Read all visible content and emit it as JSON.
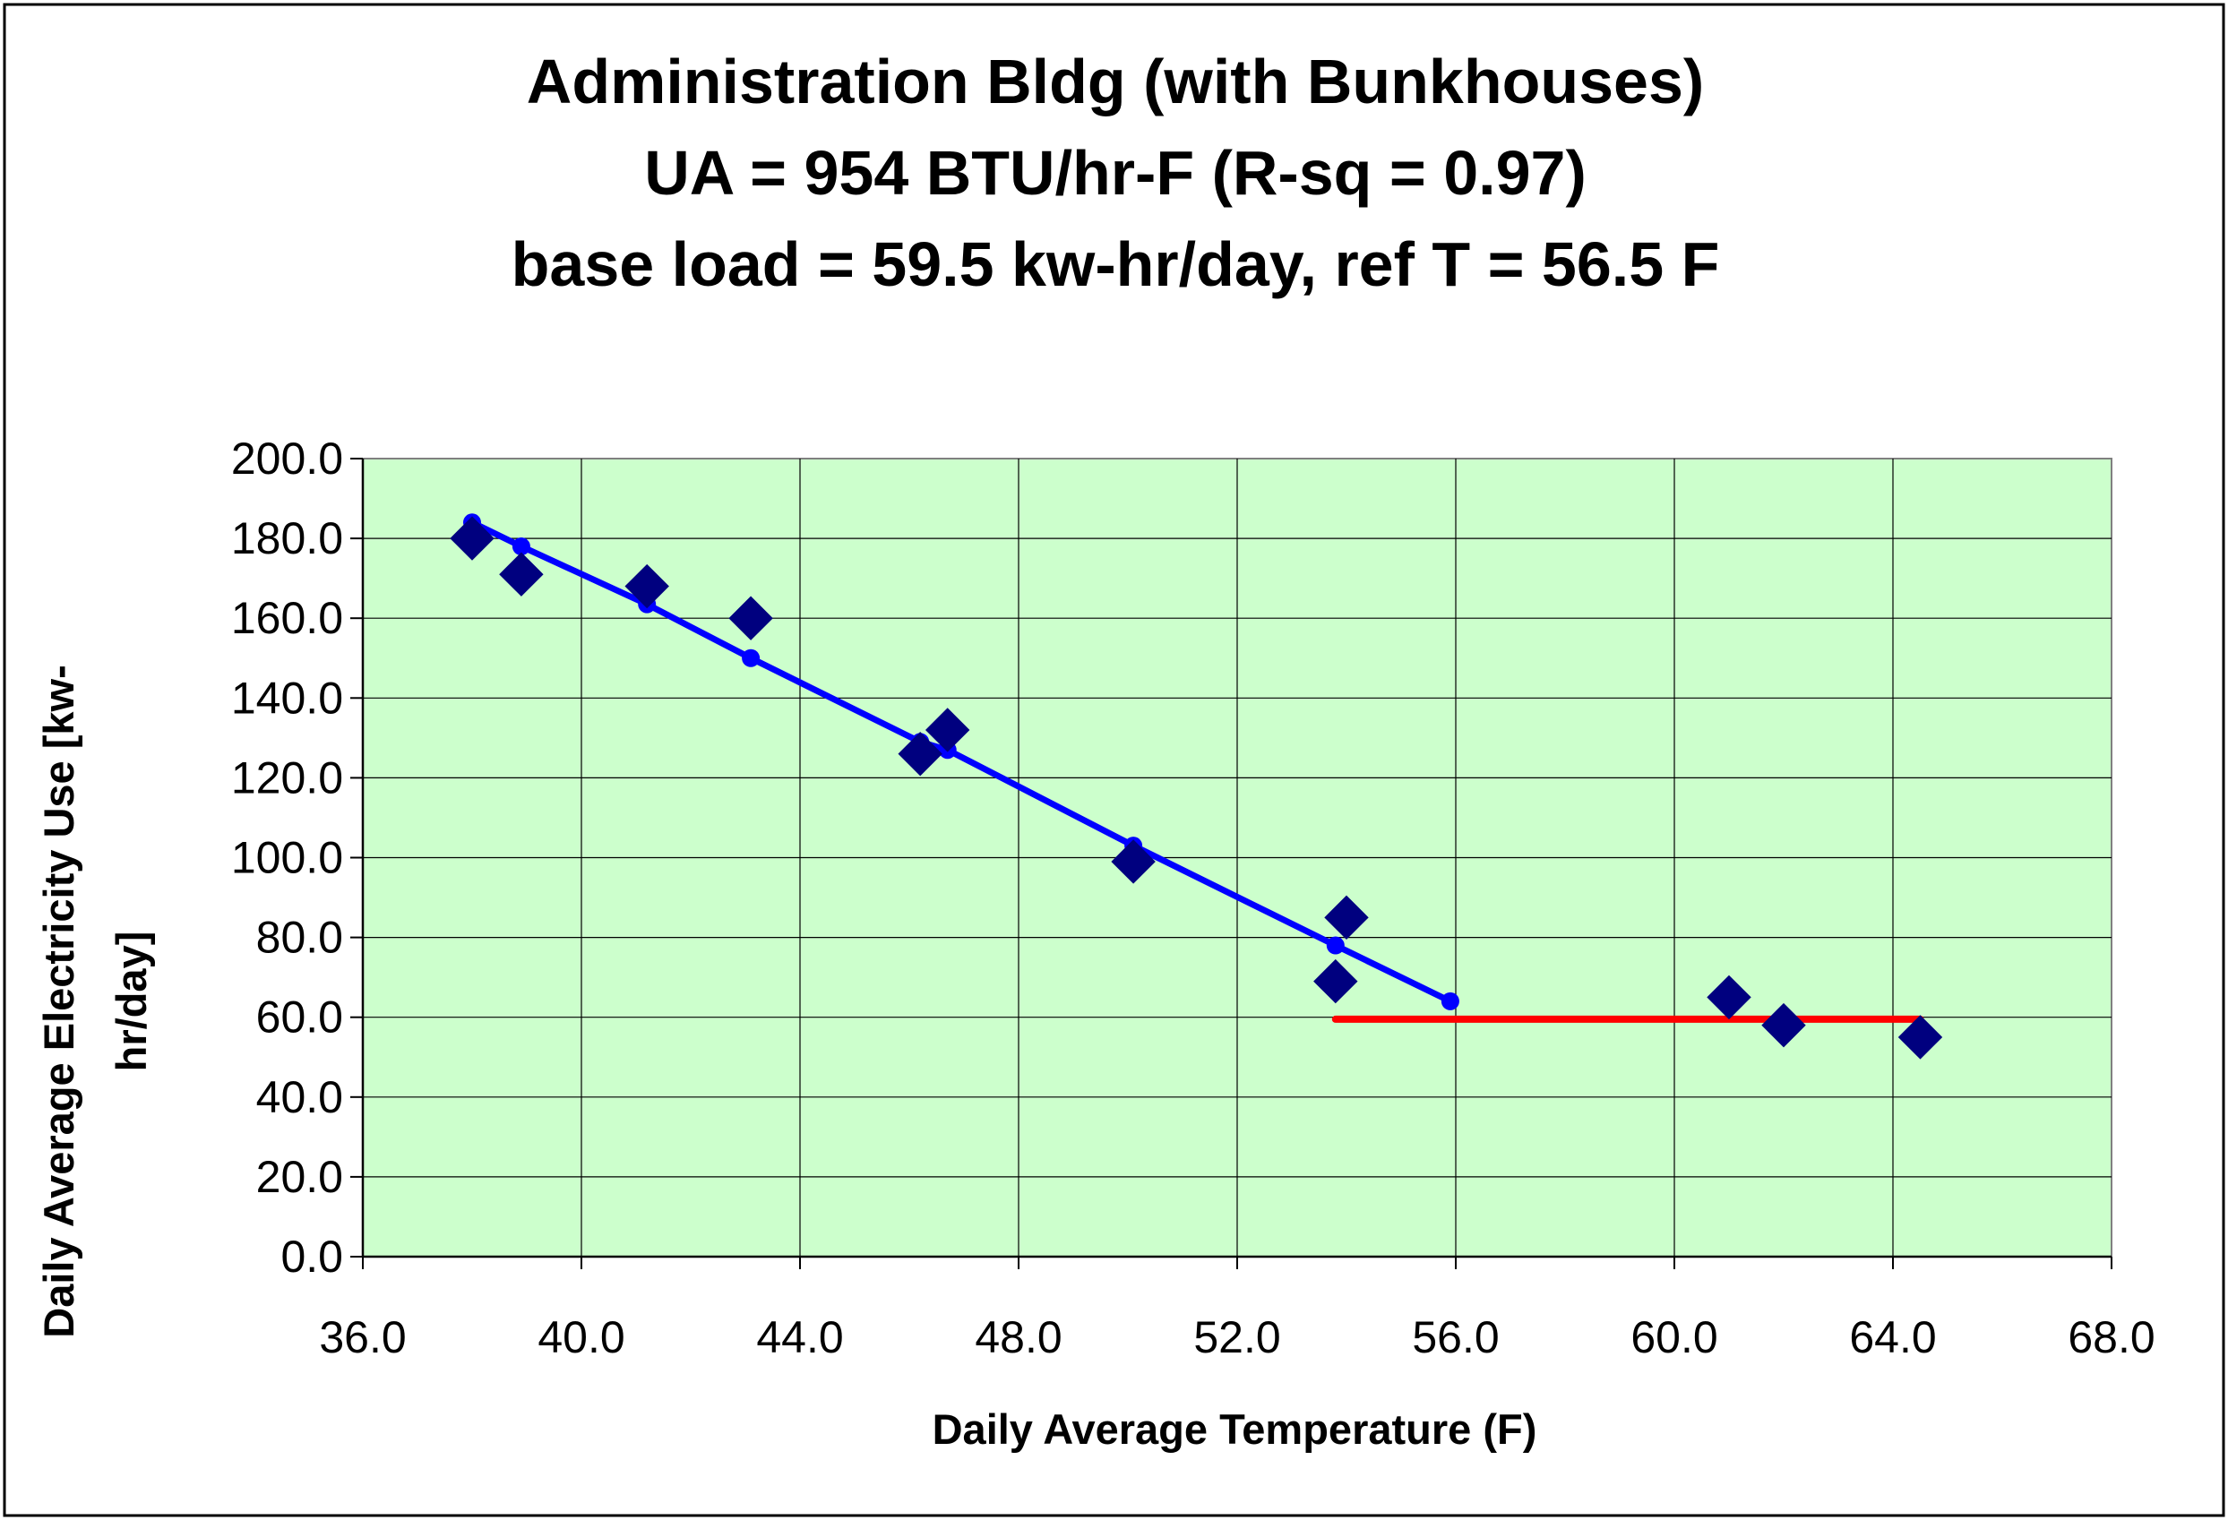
{
  "chart_data": {
    "type": "scatter",
    "title_lines": [
      "Administration Bldg (with Bunkhouses)",
      "UA = 954 BTU/hr-F (R-sq = 0.97)",
      "base load = 59.5 kw-hr/day, ref T = 56.5 F"
    ],
    "xlabel": "Daily Average Temperature (F)",
    "ylabel_lines": [
      "Daily Average Electricity Use [kw-",
      "hr/day]"
    ],
    "xlim": [
      36,
      68
    ],
    "ylim": [
      0,
      200
    ],
    "x_ticks": [
      "36.0",
      "40.0",
      "44.0",
      "48.0",
      "52.0",
      "56.0",
      "60.0",
      "64.0",
      "68.0"
    ],
    "y_ticks": [
      "0.0",
      "20.0",
      "40.0",
      "60.0",
      "80.0",
      "100.0",
      "120.0",
      "140.0",
      "160.0",
      "180.0",
      "200.0"
    ],
    "grid": true,
    "plot_background": "#ccffcc",
    "series": [
      {
        "marker": "diamond",
        "color": "#00007f",
        "points": [
          {
            "x": 38.0,
            "y": 180.0
          },
          {
            "x": 38.9,
            "y": 171.0
          },
          {
            "x": 41.2,
            "y": 168.0
          },
          {
            "x": 43.1,
            "y": 160.0
          },
          {
            "x": 46.2,
            "y": 126.0
          },
          {
            "x": 46.7,
            "y": 132.0
          },
          {
            "x": 50.1,
            "y": 99.0
          },
          {
            "x": 53.8,
            "y": 69.0
          },
          {
            "x": 54.0,
            "y": 85.0
          },
          {
            "x": 61.0,
            "y": 65.0
          },
          {
            "x": 62.0,
            "y": 58.0
          },
          {
            "x": 64.5,
            "y": 55.0
          }
        ]
      },
      {
        "marker": "circle",
        "color": "#0000ff",
        "line": true,
        "points": [
          {
            "x": 38.0,
            "y": 184.0
          },
          {
            "x": 38.9,
            "y": 178.0
          },
          {
            "x": 41.2,
            "y": 163.5
          },
          {
            "x": 43.1,
            "y": 150.0
          },
          {
            "x": 46.2,
            "y": 129.0
          },
          {
            "x": 46.7,
            "y": 127.0
          },
          {
            "x": 50.1,
            "y": 103.0
          },
          {
            "x": 53.8,
            "y": 78.0
          },
          {
            "x": 55.9,
            "y": 64.0
          }
        ]
      },
      {
        "marker": "none",
        "color": "#ff0000",
        "line": true,
        "points": [
          {
            "x": 53.8,
            "y": 59.5
          },
          {
            "x": 64.5,
            "y": 59.5
          }
        ]
      }
    ]
  }
}
